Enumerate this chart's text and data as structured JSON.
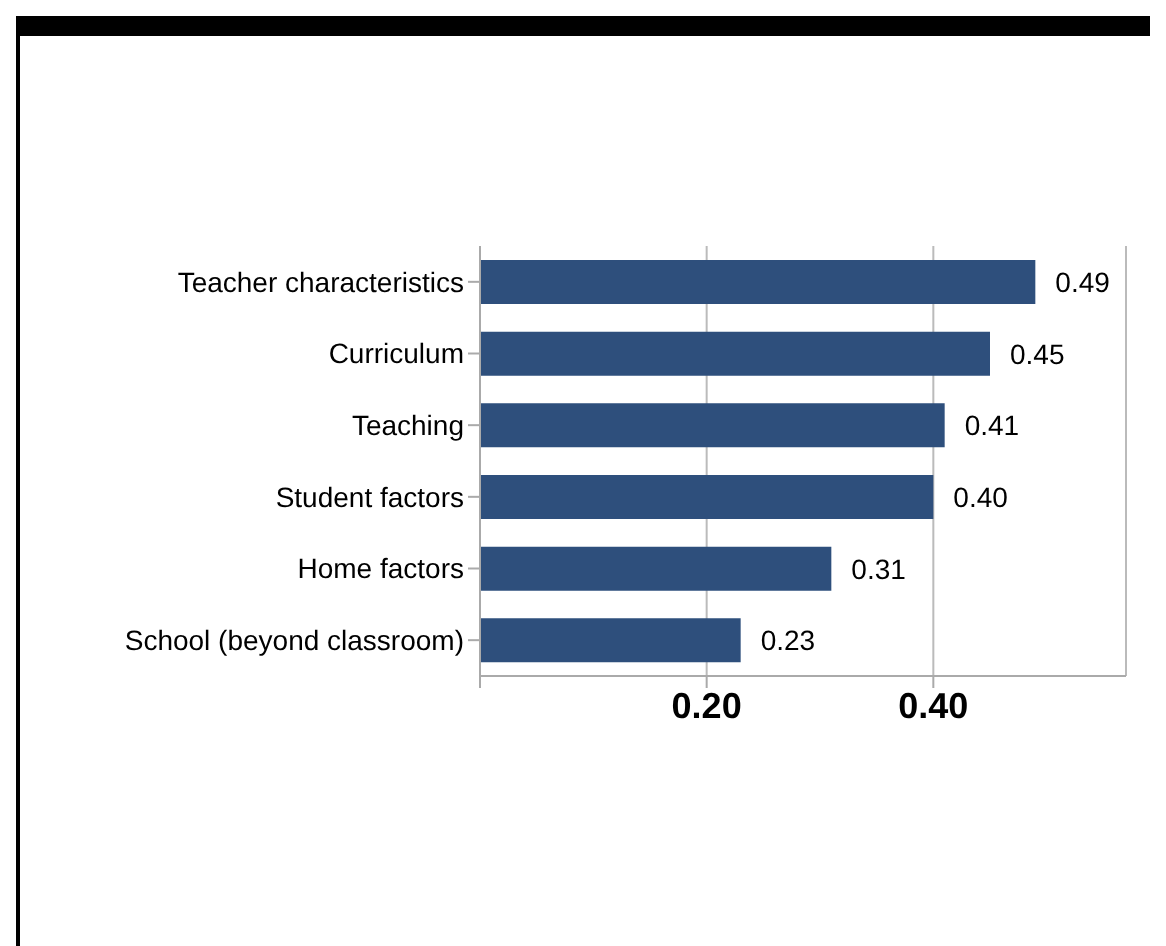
{
  "chart_data": {
    "type": "bar",
    "orientation": "horizontal",
    "categories": [
      "Teacher characteristics",
      "Curriculum",
      "Teaching",
      "Student factors",
      "Home factors",
      "School (beyond classroom)"
    ],
    "values": [
      0.49,
      0.45,
      0.41,
      0.4,
      0.31,
      0.23
    ],
    "color": "#2e4f7c",
    "value_labels": [
      "0.49",
      "0.45",
      "0.41",
      "0.40",
      "0.31",
      "0.23"
    ],
    "xlim": [
      0,
      0.57
    ],
    "xticks": [
      {
        "value": 0,
        "label": null
      },
      {
        "value": 0.2,
        "label": "0.20"
      },
      {
        "value": 0.4,
        "label": "0.40"
      }
    ],
    "grid": "x",
    "legend": false
  }
}
